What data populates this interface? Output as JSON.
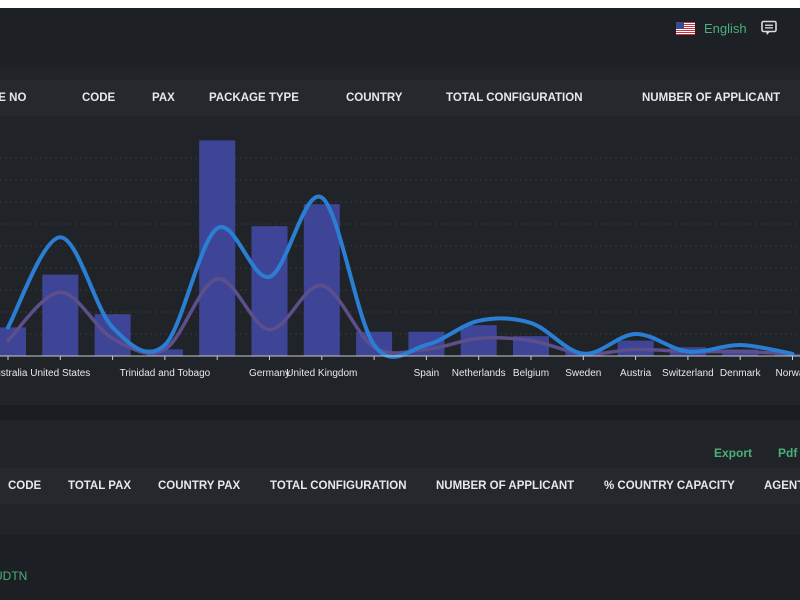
{
  "header": {
    "language": "English",
    "flag_icon": "us-flag-icon",
    "chat_icon": "message-icon"
  },
  "table1": {
    "columns": [
      "RE NO",
      "CODE",
      "PAX",
      "PACKAGE TYPE",
      "COUNTRY",
      "TOTAL CONFIGURATION",
      "NUMBER OF APPLICANT"
    ]
  },
  "chart_data": {
    "type": "bar",
    "categories": [
      "Australia",
      "United States",
      "",
      "Trinidad and Tobago",
      "",
      "Germany",
      "United Kingdom",
      "",
      "Spain",
      "Netherlands",
      "Belgium",
      "Sweden",
      "Austria",
      "Switzerland",
      "Denmark",
      "Norway"
    ],
    "series": [
      {
        "values": [
          1.3,
          3.7,
          1.9,
          0.3,
          9.8,
          5.9,
          6.9,
          1.1,
          1.1,
          1.4,
          0.9,
          0.2,
          0.7,
          0.4,
          0.3,
          0.1
        ]
      },
      {
        "values": [
          1.3,
          5.4,
          1.3,
          0.5,
          5.8,
          3.6,
          7.2,
          0.5,
          0.5,
          1.6,
          1.5,
          0.1,
          1.0,
          0.2,
          0.5,
          0.1
        ]
      },
      {
        "values": [
          0.7,
          2.9,
          0.8,
          0.3,
          3.5,
          1.2,
          3.2,
          0.4,
          0.3,
          0.8,
          0.7,
          0.1,
          0.3,
          0.2,
          0.2,
          0.1
        ]
      }
    ],
    "ylim": [
      0,
      10
    ],
    "grid": true,
    "colors": {
      "bars": "#3f4596",
      "line_primary": "#2a7fd4",
      "line_secondary": "#5c4f8c",
      "gridline": "#3a3f46"
    }
  },
  "table2": {
    "actions": {
      "export": "Export",
      "pdf": "Pdf"
    },
    "columns": [
      "CODE",
      "TOTAL PAX",
      "COUNTRY PAX",
      "TOTAL CONFIGURATION",
      "NUMBER OF APPLICANT",
      "% COUNTRY CAPACITY",
      "AGENT"
    ],
    "rows": [
      {
        "code": "UDTN"
      }
    ]
  }
}
